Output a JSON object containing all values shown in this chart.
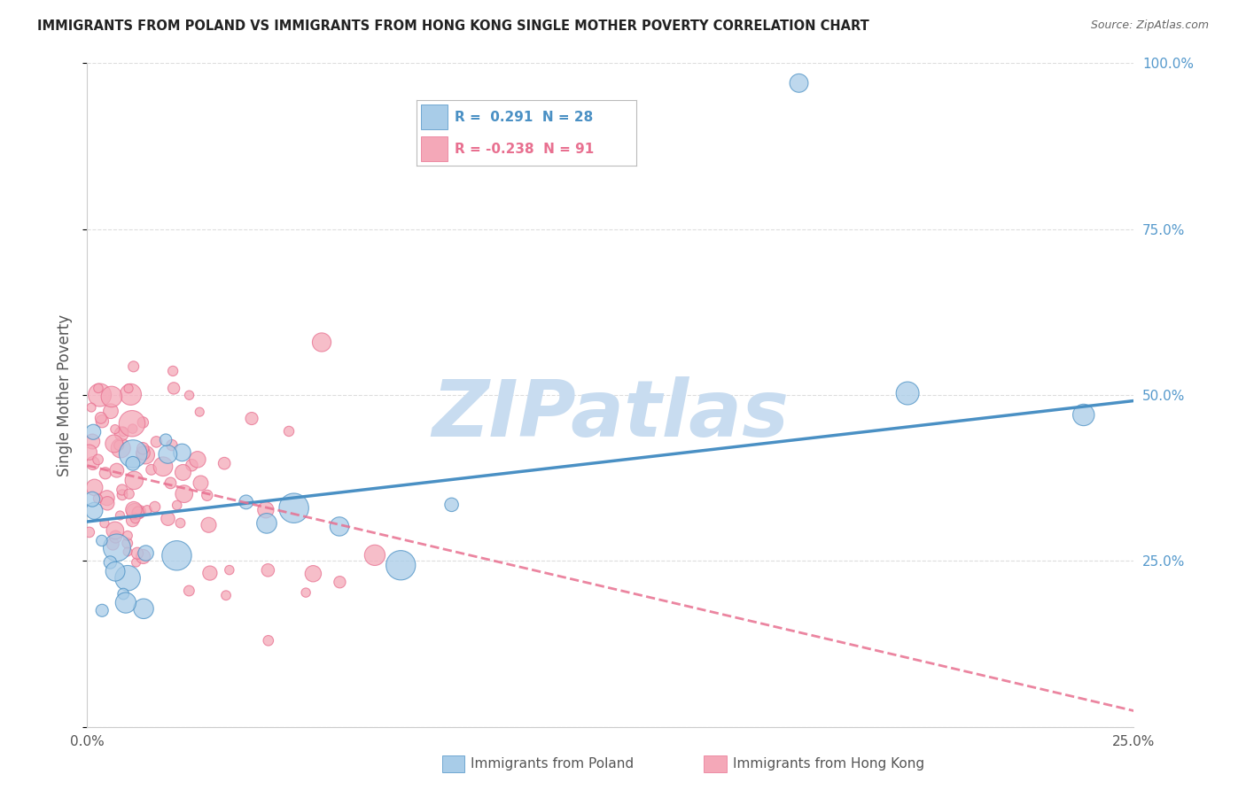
{
  "title": "IMMIGRANTS FROM POLAND VS IMMIGRANTS FROM HONG KONG SINGLE MOTHER POVERTY CORRELATION CHART",
  "source": "Source: ZipAtlas.com",
  "ylabel": "Single Mother Poverty",
  "xlabel_poland": "Immigrants from Poland",
  "xlabel_hongkong": "Immigrants from Hong Kong",
  "xmin": 0.0,
  "xmax": 0.25,
  "ymin": 0.0,
  "ymax": 1.0,
  "poland_R": 0.291,
  "poland_N": 28,
  "hongkong_R": -0.238,
  "hongkong_N": 91,
  "poland_color": "#A8CCE8",
  "hongkong_color": "#F4A8B8",
  "poland_line_color": "#4A90C4",
  "hongkong_line_color": "#E87090",
  "background_color": "#FFFFFF",
  "watermark_color": "#C8DCF0",
  "grid_color": "#DDDDDD",
  "right_tick_color": "#5599CC",
  "title_color": "#222222",
  "label_color": "#555555"
}
